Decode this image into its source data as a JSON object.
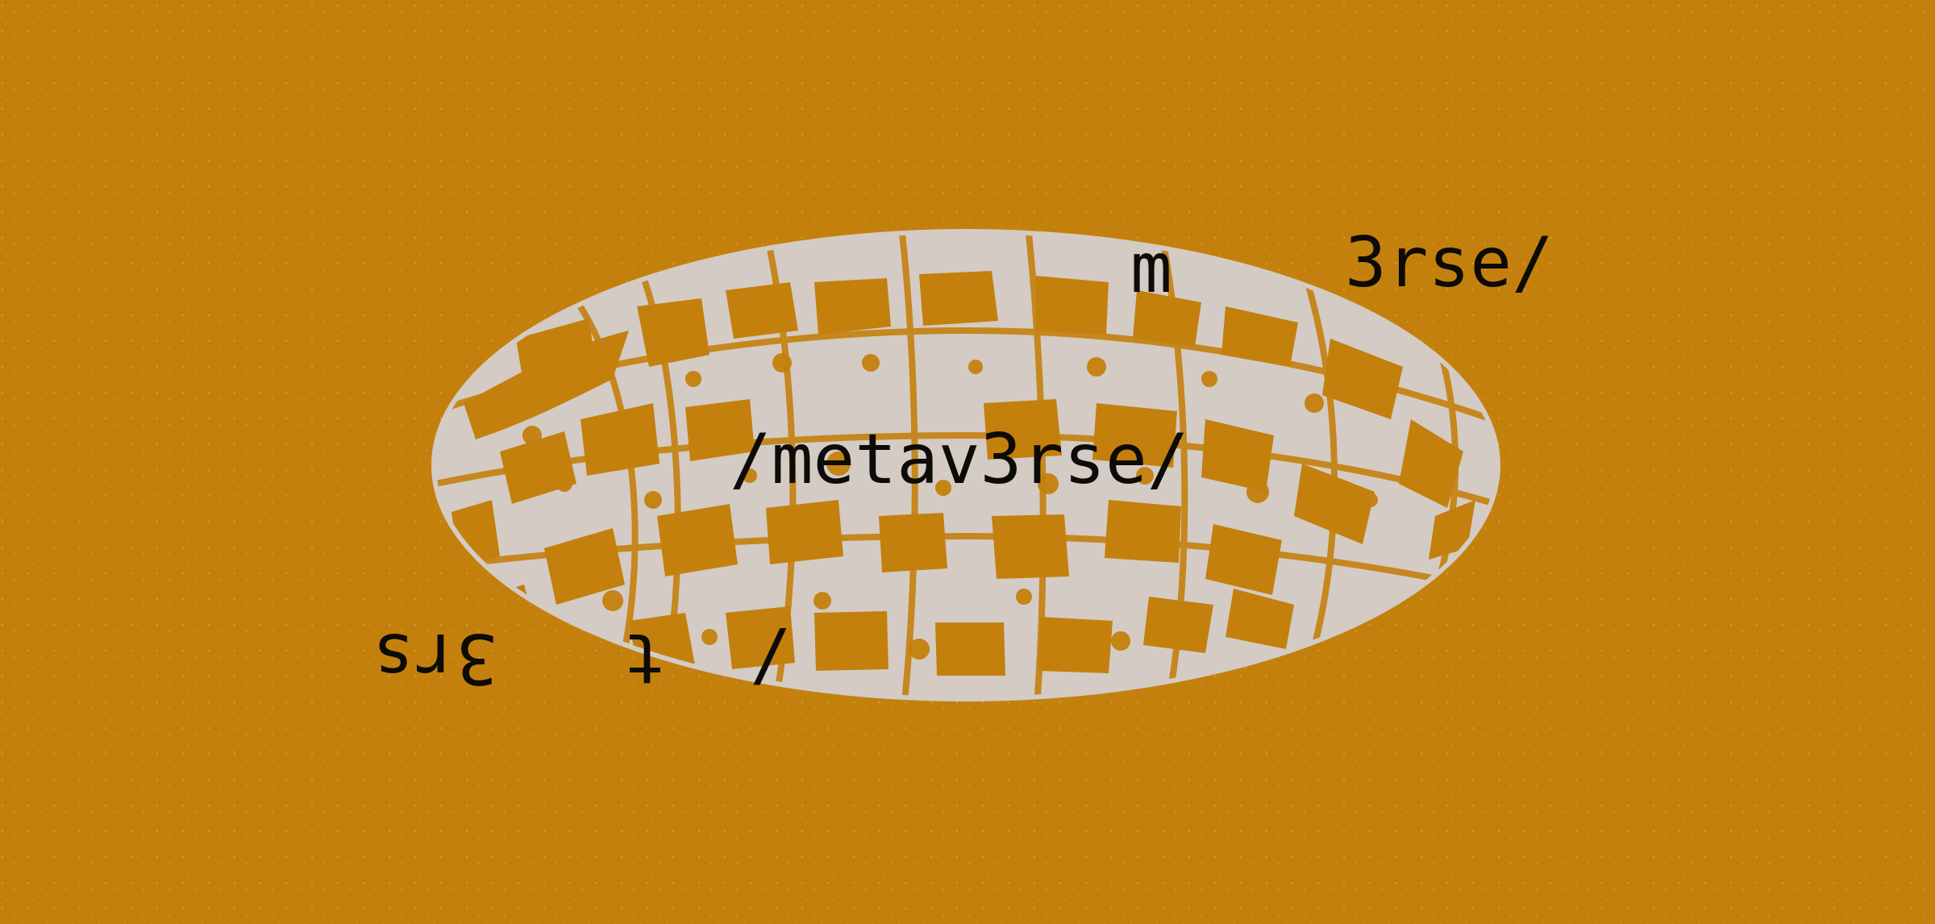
{
  "colors": {
    "background": "#c4800d",
    "globe": "#d3cbc4",
    "text": "#0d0b08"
  },
  "texts": {
    "center": "/metav3rse/",
    "fragment_m": "m",
    "fragment_tail": "3rse/",
    "upside_down": "/  t   3rs"
  },
  "artwork": {
    "subject": "globe-map-ellipse"
  }
}
